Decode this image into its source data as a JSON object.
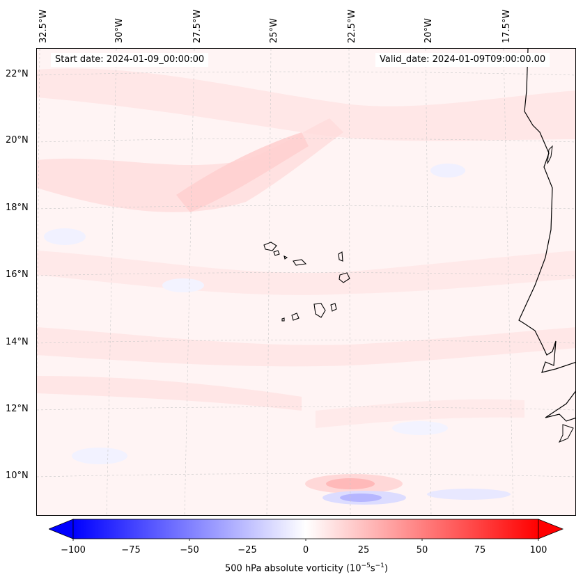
{
  "map": {
    "start_date": "Start date: 2024-01-09_00:00:00",
    "valid_date": "Valid_date: 2024-01-09T09:00:00.00",
    "lon_labels": [
      "32.5°W",
      "30°W",
      "27.5°W",
      "25°W",
      "22.5°W",
      "20°W",
      "17.5°W"
    ],
    "lat_labels": [
      "22°N",
      "20°N",
      "18°N",
      "16°N",
      "14°N",
      "12°N",
      "10°N"
    ]
  },
  "colorbar": {
    "ticks": [
      "−100",
      "−75",
      "−50",
      "−25",
      "0",
      "25",
      "50",
      "75",
      "100"
    ],
    "label_prefix": "500 hPa absolute vorticity (10",
    "label_exp1": "−5",
    "label_mid": "s",
    "label_exp2": "−1",
    "label_suffix": ")",
    "min_color": "#0000ff",
    "mid_color": "#ffffff",
    "max_color": "#ff0000"
  }
}
